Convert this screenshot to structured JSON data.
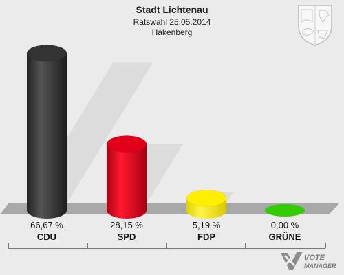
{
  "header": {
    "title": "Stadt Lichtenau",
    "subtitle": "Ratswahl 25.05.2014",
    "district": "Hakenberg"
  },
  "logo": {
    "line1": "VOTE",
    "line2": "MANAGER"
  },
  "chart_data": {
    "type": "bar",
    "categories": [
      "CDU",
      "SPD",
      "FDP",
      "GRÜNE"
    ],
    "values": [
      66.67,
      28.15,
      5.19,
      0.0
    ],
    "value_labels": [
      "66,67 %",
      "28,15 %",
      "5,19 %",
      "0,00 %"
    ],
    "colors": [
      "#333333",
      "#e0001a",
      "#ffee00",
      "#33cc00"
    ],
    "ylim": [
      0,
      70
    ],
    "grid": false,
    "legend": "none"
  }
}
